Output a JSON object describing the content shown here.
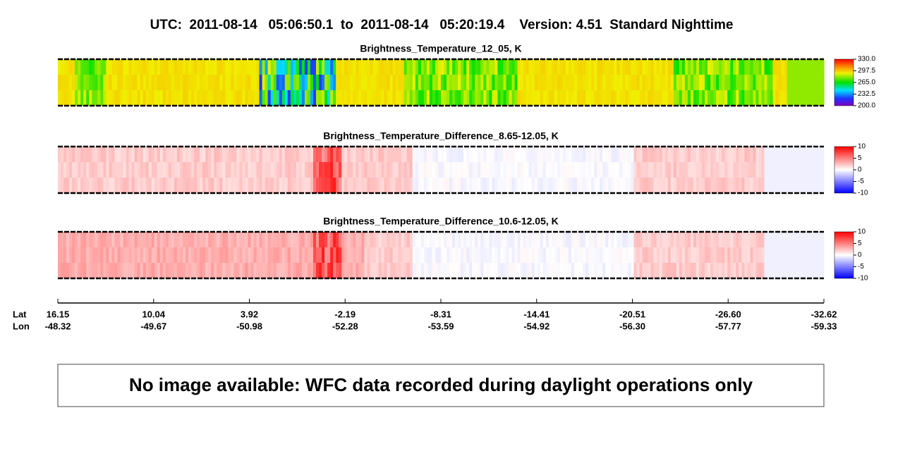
{
  "title": "UTC:  2011-08-14   05:06:50.1  to  2011-08-14   05:20:19.4    Version: 4.51  Standard Nighttime",
  "panels": [
    {
      "title": "Brightness_Temperature_12_05, K",
      "colorbar": {
        "lim": [
          200,
          330
        ],
        "ticks": [
          {
            "value": 330,
            "label": "330.0"
          },
          {
            "value": 297.5,
            "label": "297.5"
          },
          {
            "value": 265,
            "label": "265.0"
          },
          {
            "value": 232.5,
            "label": "232.5"
          },
          {
            "value": 200,
            "label": "200.0"
          }
        ]
      }
    },
    {
      "title": "Brightness_Temperature_Difference_8.65-12.05, K",
      "colorbar": {
        "lim": [
          -10,
          10
        ],
        "ticks": [
          10,
          5,
          0,
          -5,
          -10
        ]
      }
    },
    {
      "title": "Brightness_Temperature_Difference_10.6-12.05, K",
      "colorbar": {
        "lim": [
          -10,
          10
        ],
        "ticks": [
          10,
          5,
          0,
          -5,
          -10
        ]
      }
    }
  ],
  "axis": {
    "lat_label": "Lat",
    "lon_label": "Lon",
    "ticks": [
      {
        "lat": "16.15",
        "lon": "-48.32"
      },
      {
        "lat": "10.04",
        "lon": "-49.67"
      },
      {
        "lat": "3.92",
        "lon": "-50.98"
      },
      {
        "lat": "-2.19",
        "lon": "-52.28"
      },
      {
        "lat": "-8.31",
        "lon": "-53.59"
      },
      {
        "lat": "-14.41",
        "lon": "-54.92"
      },
      {
        "lat": "-20.51",
        "lon": "-56.30"
      },
      {
        "lat": "-26.60",
        "lon": "-57.77"
      },
      {
        "lat": "-32.62",
        "lon": "-59.33"
      }
    ]
  },
  "notice": "No image available: WFC data recorded during daylight operations only"
}
